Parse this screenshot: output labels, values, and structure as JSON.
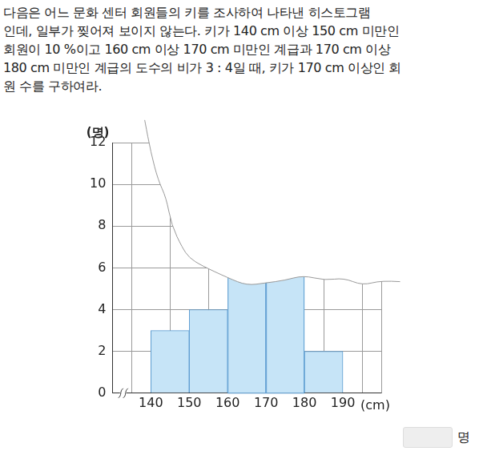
{
  "question": {
    "lines": [
      "다음은 어느 문화 센터 회원들의 키를 조사하여 나타낸 히스토그램",
      "인데, 일부가 찢어져 보이지 않는다. 키가 140 cm 이상 150 cm 미만인",
      "회원이 10 %이고 160 cm 이상 170 cm 미만인 계급과 170 cm 이상",
      "180 cm 미만인 계급의 도수의 비가 3 : 4일 때, 키가 170 cm 이상인 회",
      "원 수를 구하여라."
    ]
  },
  "chart_data": {
    "type": "histogram",
    "bins": [
      140,
      150,
      160,
      170,
      180,
      190
    ],
    "values": [
      3,
      4,
      null,
      null,
      2
    ],
    "color": "#c6e4f7",
    "x_label": "(cm)",
    "y_label": "(명)",
    "xlim": [
      130,
      200
    ],
    "ylim": [
      0,
      12
    ],
    "xticks": [
      140,
      150,
      160,
      170,
      180,
      190
    ],
    "yticks": [
      0,
      2,
      4,
      6,
      8,
      10,
      12
    ],
    "grid": true
  },
  "answer": {
    "unit": "명"
  }
}
